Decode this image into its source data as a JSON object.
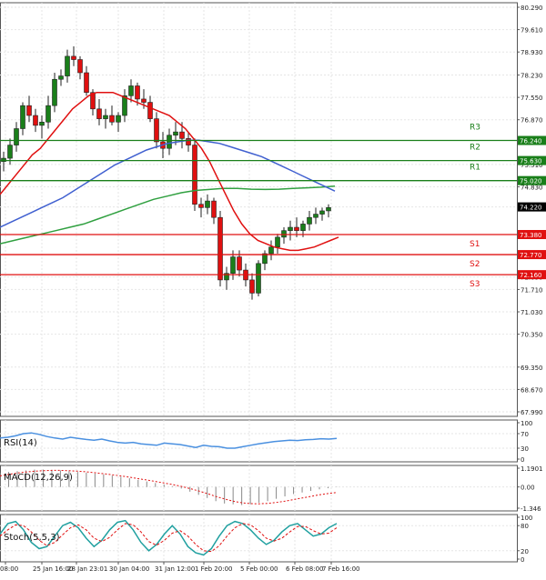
{
  "chart_data": {
    "type": "candlestick",
    "instrument_timeframe": "H4",
    "grid": true,
    "x_ticks": [
      "25 Jan 08:00",
      "25 Jan 16:00",
      "28 Jan 23:01",
      "30 Jan 04:00",
      "31 Jan 12:00",
      "1 Feb 20:00",
      "5 Feb 00:00",
      "6 Feb 08:00",
      "7 Feb 16:00"
    ],
    "x_tick_labels_shown": [
      "08:00",
      "25 Jan 16:00",
      "28 Jan 23:01",
      "30 Jan 04:00",
      "31 Jan 12:00",
      "1 Feb 20:00",
      "5 Feb 00:00",
      "6 Feb 08:00",
      "7 Feb 16:00"
    ],
    "price_panel": {
      "y_ticks": [
        "80.290",
        "79.610",
        "78.930",
        "78.230",
        "77.550",
        "76.870",
        "75.510",
        "74.830",
        "74.220",
        "72.090",
        "71.710",
        "71.030",
        "70.350",
        "69.350",
        "68.670",
        "67.990"
      ],
      "ylim": [
        67.99,
        80.29
      ],
      "current_price": "74.220",
      "levels": [
        {
          "name": "R3",
          "price": 76.24,
          "label": "76.240"
        },
        {
          "name": "R2",
          "price": 75.63,
          "label": "75.630"
        },
        {
          "name": "R1",
          "price": 75.02,
          "label": "75.020"
        },
        {
          "name": "S1",
          "price": 73.38,
          "label": "73.380"
        },
        {
          "name": "S2",
          "price": 72.77,
          "label": "72.770"
        },
        {
          "name": "S3",
          "price": 72.16,
          "label": "72.160"
        }
      ],
      "candles": [
        [
          75.6,
          75.9,
          75.3,
          75.7
        ],
        [
          75.7,
          76.3,
          75.5,
          76.1
        ],
        [
          76.1,
          76.8,
          75.9,
          76.6
        ],
        [
          76.6,
          77.4,
          76.4,
          77.3
        ],
        [
          77.3,
          77.6,
          76.8,
          77.0
        ],
        [
          77.0,
          77.2,
          76.5,
          76.7
        ],
        [
          76.7,
          77.0,
          76.3,
          76.8
        ],
        [
          76.8,
          77.6,
          76.6,
          77.3
        ],
        [
          77.3,
          78.3,
          77.1,
          78.1
        ],
        [
          78.1,
          78.4,
          77.9,
          78.2
        ],
        [
          78.2,
          79.0,
          78.0,
          78.8
        ],
        [
          78.8,
          79.1,
          78.5,
          78.7
        ],
        [
          78.7,
          78.8,
          78.1,
          78.3
        ],
        [
          78.3,
          78.5,
          77.6,
          77.7
        ],
        [
          77.7,
          77.8,
          77.0,
          77.2
        ],
        [
          77.2,
          77.5,
          76.7,
          76.9
        ],
        [
          76.9,
          77.2,
          76.6,
          77.0
        ],
        [
          77.0,
          77.3,
          76.7,
          76.8
        ],
        [
          76.8,
          77.1,
          76.5,
          77.0
        ],
        [
          77.0,
          77.8,
          76.8,
          77.6
        ],
        [
          77.6,
          78.1,
          77.4,
          77.9
        ],
        [
          77.9,
          78.0,
          77.3,
          77.5
        ],
        [
          77.5,
          77.8,
          77.2,
          77.4
        ],
        [
          77.4,
          77.6,
          76.8,
          76.9
        ],
        [
          76.9,
          77.1,
          76.0,
          76.2
        ],
        [
          76.2,
          76.5,
          75.7,
          76.0
        ],
        [
          76.0,
          76.6,
          75.8,
          76.4
        ],
        [
          76.4,
          76.8,
          76.1,
          76.5
        ],
        [
          76.5,
          76.8,
          76.0,
          76.3
        ],
        [
          76.3,
          76.5,
          75.9,
          76.1
        ],
        [
          76.1,
          76.3,
          74.1,
          74.3
        ],
        [
          74.3,
          74.5,
          73.9,
          74.2
        ],
        [
          74.2,
          74.6,
          74.0,
          74.4
        ],
        [
          74.4,
          74.5,
          73.7,
          73.9
        ],
        [
          73.9,
          74.1,
          71.8,
          72.0
        ],
        [
          72.0,
          72.4,
          71.7,
          72.2
        ],
        [
          72.2,
          72.9,
          72.0,
          72.7
        ],
        [
          72.7,
          72.9,
          72.1,
          72.3
        ],
        [
          72.3,
          72.5,
          71.8,
          72.0
        ],
        [
          72.0,
          72.2,
          71.4,
          71.6
        ],
        [
          71.6,
          72.6,
          71.5,
          72.5
        ],
        [
          72.5,
          72.9,
          72.3,
          72.8
        ],
        [
          72.8,
          73.2,
          72.6,
          73.0
        ],
        [
          73.0,
          73.4,
          72.8,
          73.3
        ],
        [
          73.3,
          73.6,
          73.1,
          73.5
        ],
        [
          73.5,
          73.8,
          73.2,
          73.6
        ],
        [
          73.6,
          73.9,
          73.3,
          73.5
        ],
        [
          73.5,
          73.8,
          73.3,
          73.7
        ],
        [
          73.7,
          74.1,
          73.5,
          73.9
        ],
        [
          73.9,
          74.2,
          73.7,
          74.0
        ],
        [
          74.0,
          74.2,
          73.8,
          74.1
        ],
        [
          74.1,
          74.3,
          73.9,
          74.2
        ]
      ],
      "ma_red": [
        74.6,
        74.9,
        75.2,
        75.5,
        75.8,
        76.0,
        76.3,
        76.6,
        76.9,
        77.2,
        77.4,
        77.6,
        77.7,
        77.7,
        77.7,
        77.6,
        77.5,
        77.4,
        77.3,
        77.2,
        77.1,
        77.0,
        76.8,
        76.6,
        76.3,
        76.0,
        75.6,
        75.1,
        74.6,
        74.1,
        73.7,
        73.4,
        73.2,
        73.1,
        73.0,
        72.95,
        72.9,
        72.9,
        72.95,
        73.0,
        73.1,
        73.2,
        73.3
      ],
      "ma_blue": [
        73.6,
        73.75,
        73.9,
        74.05,
        74.2,
        74.35,
        74.5,
        74.7,
        74.9,
        75.1,
        75.3,
        75.5,
        75.65,
        75.8,
        75.95,
        76.05,
        76.15,
        76.2,
        76.25,
        76.25,
        76.2,
        76.15,
        76.05,
        75.95,
        75.85,
        75.75,
        75.6,
        75.45,
        75.3,
        75.15,
        75.0,
        74.85,
        74.7
      ],
      "ma_green": [
        73.1,
        73.2,
        73.3,
        73.4,
        73.5,
        73.6,
        73.7,
        73.85,
        74.0,
        74.15,
        74.3,
        74.45,
        74.55,
        74.65,
        74.72,
        74.75,
        74.78,
        74.78,
        74.76,
        74.75,
        74.76,
        74.78,
        74.8,
        74.82,
        74.85
      ],
      "level_colors": {
        "resistance": "#1a7f1a",
        "support": "#e01010"
      }
    },
    "indicators": [
      {
        "name": "RSI(14)",
        "y_ticks": [
          "100",
          "70",
          "30",
          "0"
        ],
        "ylim": [
          0,
          100
        ],
        "values": [
          58,
          60,
          64,
          70,
          72,
          68,
          62,
          58,
          55,
          60,
          57,
          54,
          52,
          55,
          50,
          46,
          44,
          46,
          42,
          40,
          38,
          44,
          42,
          40,
          36,
          32,
          38,
          35,
          34,
          30,
          30,
          34,
          38,
          42,
          45,
          48,
          50,
          52,
          51,
          53,
          54,
          56,
          55,
          57
        ]
      },
      {
        "name": "MACD(12,26,9)",
        "y_ticks": [
          "1.1901",
          "0.00",
          "-1.346"
        ],
        "ylim": [
          -1.346,
          1.1901
        ],
        "histogram": [
          0.9,
          0.95,
          1.0,
          1.05,
          1.1,
          1.1,
          1.08,
          1.05,
          1.0,
          0.95,
          0.9,
          0.85,
          0.8,
          0.72,
          0.65,
          0.55,
          0.45,
          0.35,
          0.25,
          0.15,
          0.05,
          -0.1,
          -0.3,
          -0.5,
          -0.7,
          -0.9,
          -1.05,
          -1.1,
          -1.15,
          -1.1,
          -1.0,
          -0.9,
          -0.75,
          -0.6,
          -0.45,
          -0.35,
          -0.25,
          -0.15,
          -0.08,
          -0.02
        ],
        "signal": [
          0.7,
          0.8,
          0.88,
          0.95,
          1.0,
          1.03,
          1.05,
          1.05,
          1.03,
          1.0,
          0.96,
          0.9,
          0.84,
          0.77,
          0.7,
          0.62,
          0.53,
          0.44,
          0.35,
          0.25,
          0.15,
          0.04,
          -0.1,
          -0.25,
          -0.42,
          -0.6,
          -0.76,
          -0.9,
          -1.0,
          -1.06,
          -1.07,
          -1.04,
          -0.98,
          -0.9,
          -0.8,
          -0.7,
          -0.6,
          -0.5,
          -0.42,
          -0.35
        ]
      },
      {
        "name": "Stoch(5,5,3)",
        "y_ticks": [
          "100",
          "80",
          "20",
          "0"
        ],
        "ylim": [
          0,
          100
        ],
        "main": [
          60,
          85,
          90,
          70,
          40,
          25,
          30,
          55,
          80,
          88,
          75,
          50,
          30,
          45,
          70,
          88,
          92,
          70,
          40,
          20,
          35,
          60,
          80,
          60,
          30,
          15,
          10,
          25,
          55,
          80,
          90,
          85,
          70,
          50,
          35,
          45,
          65,
          80,
          85,
          70,
          55,
          60,
          75,
          85
        ],
        "signal": [
          55,
          70,
          82,
          80,
          65,
          45,
          32,
          40,
          58,
          75,
          82,
          70,
          50,
          42,
          52,
          70,
          85,
          82,
          65,
          42,
          33,
          45,
          62,
          68,
          55,
          35,
          20,
          18,
          32,
          55,
          75,
          85,
          82,
          68,
          50,
          43,
          50,
          65,
          78,
          78,
          68,
          60,
          62,
          75
        ]
      }
    ]
  },
  "colors": {
    "bull_candle": "#1a7f1a",
    "bear_candle": "#e01010",
    "ma_red": "#e01010",
    "ma_blue": "#4060d0",
    "ma_green": "#30a040",
    "rsi": "#4a90e0",
    "macd_hist": "#888888",
    "macd_signal": "#e01010",
    "stoch_main": "#20a0a0",
    "stoch_signal": "#e01010",
    "price_badge_bg": "#000000",
    "grid": "#e6e6e6"
  }
}
